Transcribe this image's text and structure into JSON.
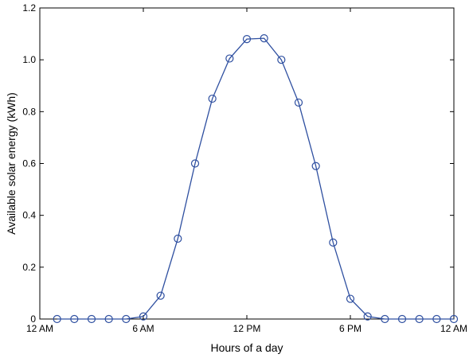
{
  "chart_data": {
    "type": "line",
    "xlabel": "Hours of a day",
    "ylabel": "Available solar energy (kWh)",
    "xlim": [
      0,
      24
    ],
    "ylim": [
      0,
      1.2
    ],
    "x_ticks": [
      {
        "value": 0,
        "label": "12 AM"
      },
      {
        "value": 6,
        "label": "6 AM"
      },
      {
        "value": 12,
        "label": "12 PM"
      },
      {
        "value": 18,
        "label": "6 PM"
      },
      {
        "value": 24,
        "label": "12 AM"
      }
    ],
    "y_ticks": [
      {
        "value": 0,
        "label": "0"
      },
      {
        "value": 0.2,
        "label": "0.2"
      },
      {
        "value": 0.4,
        "label": "0.4"
      },
      {
        "value": 0.6,
        "label": "0.6"
      },
      {
        "value": 0.8,
        "label": "0.8"
      },
      {
        "value": 1.0,
        "label": "1.0"
      },
      {
        "value": 1.2,
        "label": "1.2"
      }
    ],
    "grid": false,
    "marker": "circle",
    "series_color": "#2e4fa0",
    "series": [
      {
        "x": [
          1,
          2,
          3,
          4,
          5,
          6,
          7,
          8,
          9,
          10,
          11,
          12,
          13,
          14,
          15,
          16,
          17,
          18,
          19,
          20,
          21,
          22,
          23,
          24
        ],
        "values": [
          0,
          0,
          0,
          0,
          0,
          0.01,
          0.09,
          0.31,
          0.6,
          0.85,
          1.005,
          1.08,
          1.083,
          1.0,
          0.835,
          0.59,
          0.295,
          0.078,
          0.01,
          0,
          0,
          0,
          0,
          0
        ]
      }
    ]
  }
}
